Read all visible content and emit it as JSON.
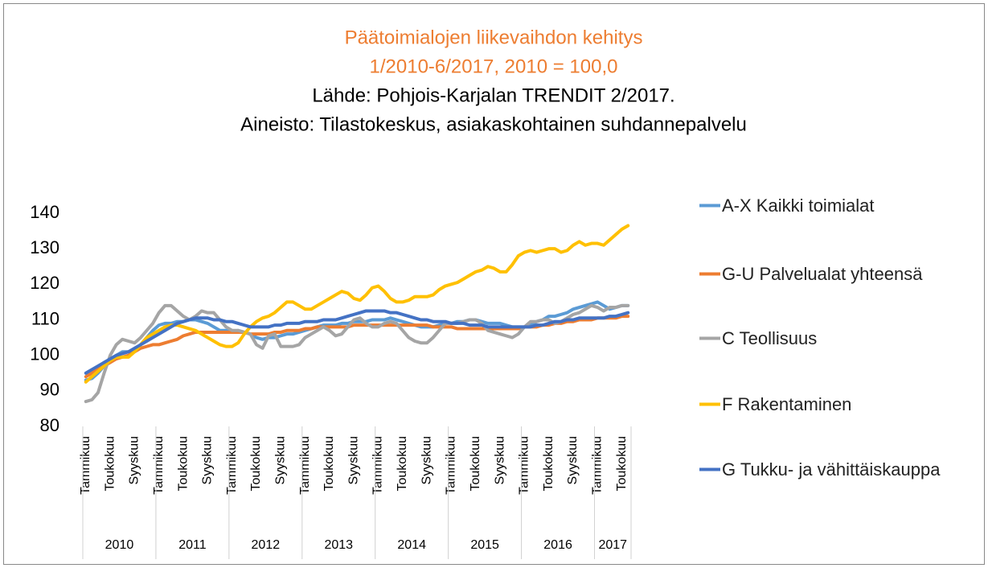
{
  "chart_data": {
    "type": "line",
    "title": [
      "Päätoimialojen liikevaihdon kehitys",
      "1/2010-6/2017, 2010 = 100,0"
    ],
    "subtitle": [
      "Lähde: Pohjois-Karjalan TRENDIT 2/2017.",
      "Aineisto: Tilastokeskus, asiakaskohtainen suhdannepalvelu"
    ],
    "title_color": "#ed7d31",
    "categories": [
      "Tammikuu",
      null,
      null,
      null,
      "Toukokuu",
      null,
      null,
      null,
      "Syyskuu",
      null,
      null,
      null,
      "Tammikuu",
      null,
      null,
      null,
      "Toukokuu",
      null,
      null,
      null,
      "Syyskuu",
      null,
      null,
      null,
      "Tammikuu",
      null,
      null,
      null,
      "Toukokuu",
      null,
      null,
      null,
      "Syyskuu",
      null,
      null,
      null,
      "Tammikuu",
      null,
      null,
      null,
      "Toukokuu",
      null,
      null,
      null,
      "Syyskuu",
      null,
      null,
      null,
      "Tammikuu",
      null,
      null,
      null,
      "Toukokuu",
      null,
      null,
      null,
      "Syyskuu",
      null,
      null,
      null,
      "Tammikuu",
      null,
      null,
      null,
      "Toukokuu",
      null,
      null,
      null,
      "Syyskuu",
      null,
      null,
      null,
      "Tammikuu",
      null,
      null,
      null,
      "Toukokuu",
      null,
      null,
      null,
      "Syyskuu",
      null,
      null,
      null,
      "Tammikuu",
      null,
      null,
      null,
      "Toukokuu",
      null
    ],
    "groups": [
      "2010",
      "2011",
      "2012",
      "2013",
      "2014",
      "2015",
      "2016",
      "2017"
    ],
    "ylim": [
      80,
      140
    ],
    "yticks": [
      80,
      90,
      100,
      110,
      120,
      130,
      140
    ],
    "grid": false,
    "series": [
      {
        "name": "A-X Kaikki toimialat",
        "color": "#5b9bd5",
        "values": [
          93,
          93.5,
          95,
          97,
          99,
          100,
          101,
          101,
          101.5,
          103,
          105,
          107,
          108.5,
          109,
          109,
          109.5,
          109.5,
          110,
          110,
          109.5,
          109,
          108,
          107,
          107,
          106.5,
          107,
          106.5,
          106,
          105,
          104.5,
          105,
          105,
          105.5,
          106,
          106,
          106.5,
          107,
          107.5,
          108,
          108.5,
          108.5,
          108.5,
          109,
          109,
          109.5,
          109.5,
          109.5,
          110,
          110,
          110,
          110.5,
          110,
          109.5,
          109,
          108.5,
          108,
          108,
          108,
          108.5,
          109,
          109,
          109.5,
          109.5,
          110,
          110,
          109.5,
          109,
          109,
          109,
          108.5,
          108,
          108,
          108,
          108.5,
          109.5,
          110,
          111,
          111,
          111.5,
          112,
          113,
          113.5,
          114,
          114.5,
          115,
          114,
          113,
          113.5,
          114,
          114
        ]
      },
      {
        "name": "G-U Palvelualat yhteensä",
        "color": "#ed7d31",
        "values": [
          94,
          95,
          96,
          97,
          98,
          99,
          99.5,
          100,
          101,
          102,
          102.5,
          103,
          103,
          103.5,
          104,
          104.5,
          105.5,
          106,
          106.5,
          106.5,
          106.5,
          106.5,
          106.5,
          106.5,
          106.5,
          106.5,
          106.5,
          106,
          106,
          106,
          106,
          106.5,
          106.5,
          107,
          107,
          107,
          107.5,
          107.5,
          108,
          108,
          108,
          108,
          108,
          108,
          108.5,
          108.5,
          108.5,
          108.5,
          108.5,
          108.5,
          108.5,
          108.5,
          108.5,
          108.5,
          108.5,
          108.5,
          108.5,
          108,
          108,
          108,
          108,
          107.5,
          107.5,
          107.5,
          107.5,
          107.5,
          107.5,
          107.5,
          107.5,
          107.5,
          107.5,
          107.5,
          108,
          108,
          108,
          108.5,
          108.5,
          109,
          109,
          109.5,
          109.5,
          110,
          110,
          110,
          110.5,
          110.5,
          110.5,
          110.5,
          111,
          111
        ]
      },
      {
        "name": "C Teollisuus",
        "color": "#a5a5a5",
        "values": [
          87,
          87.5,
          89.5,
          95,
          100,
          103,
          104.5,
          104,
          103.5,
          105,
          107,
          109,
          112,
          114,
          114,
          112.5,
          111,
          110,
          111,
          112.5,
          112,
          112,
          110,
          108,
          107,
          107,
          106.5,
          106,
          103,
          102,
          105.5,
          106,
          102.5,
          102.5,
          102.5,
          103,
          105,
          106,
          107,
          108,
          107,
          105.5,
          106,
          108,
          110,
          110.5,
          109,
          108,
          108,
          109,
          109.5,
          109,
          107,
          105,
          104,
          103.5,
          103.5,
          105,
          107,
          109,
          109,
          109,
          109.5,
          110,
          110,
          109,
          107,
          106.5,
          106,
          105.5,
          105,
          106,
          108,
          109.5,
          109.5,
          110,
          110,
          109,
          109.5,
          110.5,
          111.5,
          112,
          113,
          114,
          113.5,
          112.5,
          113.5,
          113.5,
          114,
          114
        ]
      },
      {
        "name": "F Rakentaminen",
        "color": "#ffc000",
        "values": [
          92.5,
          94,
          95.5,
          97,
          98.5,
          99.5,
          99.5,
          99.5,
          101,
          103,
          105,
          106,
          107,
          108,
          108.5,
          108.5,
          108,
          107.5,
          107,
          106,
          105,
          104,
          103,
          102.5,
          102.5,
          103.5,
          106,
          108,
          109.5,
          110.5,
          111,
          112,
          113.5,
          115,
          115,
          114,
          113,
          113,
          114,
          115,
          116,
          117,
          118,
          117.5,
          116,
          115.5,
          117,
          119,
          119.5,
          118,
          116,
          115,
          115,
          115.5,
          116.5,
          116.5,
          116.5,
          117,
          118.5,
          119.5,
          120,
          120.5,
          121.5,
          122.5,
          123.5,
          124,
          125,
          124.5,
          123.5,
          123.5,
          125.5,
          128,
          129,
          129.5,
          129,
          129.5,
          130,
          130,
          129,
          129.5,
          131,
          132,
          131,
          131.5,
          131.5,
          131,
          132.5,
          134,
          135.5,
          136.5
        ]
      },
      {
        "name": "G Tukku- ja vähittäiskauppa",
        "color": "#4472c4",
        "values": [
          95,
          96,
          97,
          98,
          99,
          100,
          100.5,
          101,
          102,
          103,
          104,
          105,
          106,
          107,
          108,
          109,
          109.5,
          110,
          110.5,
          110.5,
          110.5,
          110,
          110,
          109.5,
          109.5,
          109,
          108.5,
          108,
          108,
          108,
          108,
          108.5,
          108.5,
          109,
          109,
          109,
          109.5,
          109.5,
          109.5,
          110,
          110,
          110,
          110.5,
          111,
          111.5,
          112,
          112.5,
          112.5,
          112.5,
          112.5,
          112,
          112,
          111.5,
          111,
          110.5,
          110,
          110,
          109.5,
          109.5,
          109.5,
          109,
          109,
          109,
          108.5,
          108.5,
          108.5,
          108,
          108,
          108,
          108,
          108,
          108,
          108,
          108,
          108.5,
          108.5,
          109,
          109.5,
          109.5,
          110,
          110,
          110.5,
          110.5,
          110.5,
          110.5,
          110.5,
          111,
          111,
          111.5,
          112
        ]
      }
    ]
  }
}
